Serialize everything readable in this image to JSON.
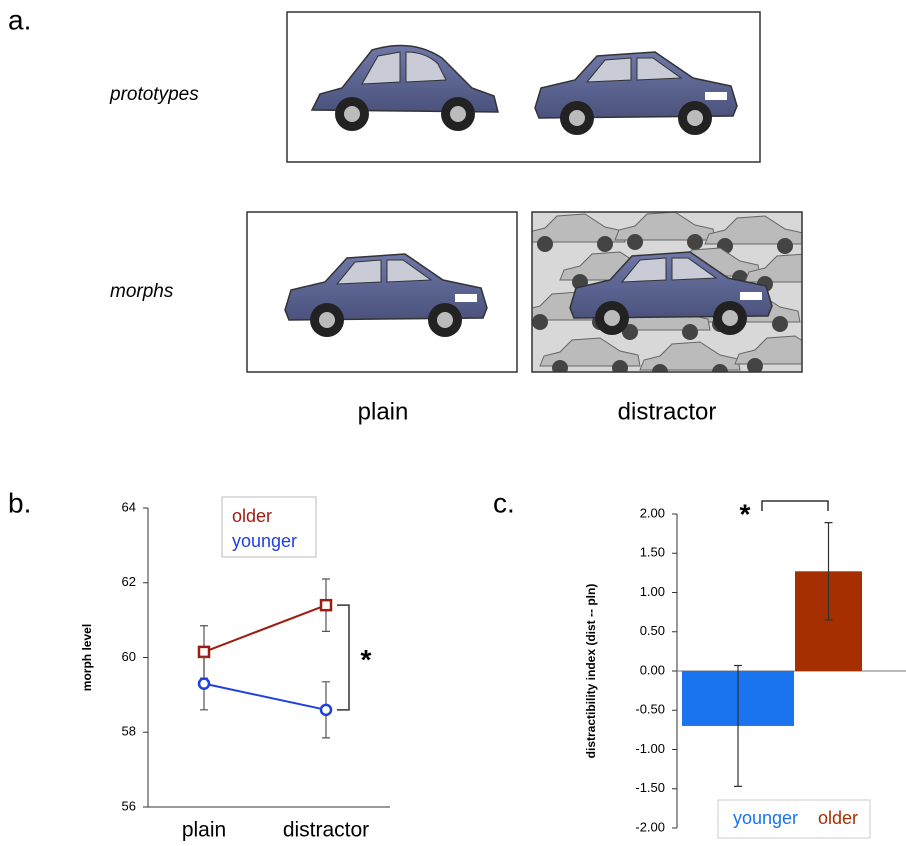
{
  "panel_a": {
    "label": "a.",
    "rows": [
      "prototypes",
      "morphs"
    ],
    "columns": [
      "plain",
      "distractor"
    ]
  },
  "chart_data": [
    {
      "type": "line",
      "label": "b.",
      "ylabel": "morph level",
      "categories": [
        "plain",
        "distractor"
      ],
      "series": [
        {
          "name": "older",
          "color": "#9b1c10",
          "marker": "square",
          "values": [
            60.15,
            61.4
          ],
          "errors": [
            0.7,
            0.7
          ]
        },
        {
          "name": "younger",
          "color": "#1f3fdf",
          "marker": "circle",
          "values": [
            59.3,
            58.6
          ],
          "errors": [
            0.7,
            0.75
          ]
        }
      ],
      "ylim": [
        56,
        64
      ],
      "yticks": [
        56,
        58,
        60,
        62,
        64
      ],
      "annotation": "*",
      "legend": "top"
    },
    {
      "type": "bar",
      "label": "c.",
      "ylabel": "distractibility index  (dist -- pln)",
      "categories": [
        "younger",
        "older"
      ],
      "colors": [
        "#1a74f0",
        "#a52f00"
      ],
      "values": [
        -0.7,
        1.27
      ],
      "errors": [
        0.77,
        0.62
      ],
      "ylim": [
        -2,
        2
      ],
      "yticks": [
        {
          "value": -2,
          "label": "-2.00"
        },
        {
          "value": -1.5,
          "label": "-1.50"
        },
        {
          "value": -1,
          "label": "-1.00"
        },
        {
          "value": -0.5,
          "label": "-0.50"
        },
        {
          "value": 0,
          "label": "0.00"
        },
        {
          "value": 0.5,
          "label": "0.50"
        },
        {
          "value": 1,
          "label": "1.00"
        },
        {
          "value": 1.5,
          "label": "1.50"
        },
        {
          "value": 2,
          "label": "2.00"
        }
      ],
      "annotation": "*",
      "legend": "bottom"
    }
  ]
}
